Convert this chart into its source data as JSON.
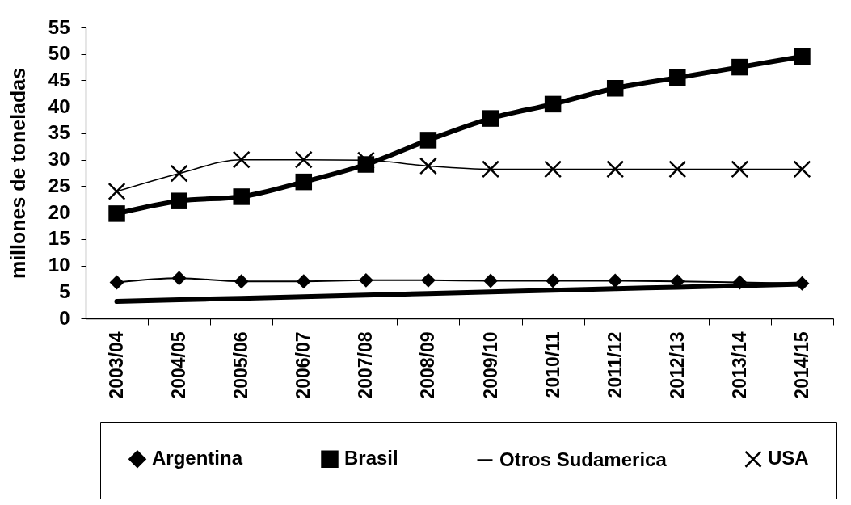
{
  "chart_data": {
    "type": "line",
    "ylabel": "millones de toneladas",
    "categories": [
      "2003/04",
      "2004/05",
      "2005/06",
      "2006/07",
      "2007/08",
      "2008/09",
      "2009/10",
      "2010/11",
      "2011/12",
      "2012/13",
      "2013/14",
      "2014/15"
    ],
    "ylim": [
      0,
      55
    ],
    "yticks": [
      0,
      5,
      10,
      15,
      20,
      25,
      30,
      35,
      40,
      45,
      50,
      55
    ],
    "legend": "bottom",
    "series": [
      {
        "name": "Argentina",
        "color": "#000000",
        "marker": "diamond",
        "values": [
          6.8,
          7.6,
          7.0,
          7.0,
          7.2,
          7.2,
          7.1,
          7.1,
          7.1,
          7.0,
          6.8,
          6.6
        ]
      },
      {
        "name": "Brasil",
        "color": "#000000",
        "marker": "square",
        "values": [
          19.8,
          22.2,
          23.0,
          25.8,
          29.1,
          33.7,
          37.8,
          40.5,
          43.5,
          45.5,
          47.5,
          49.5
        ]
      },
      {
        "name": "Otros Sudamerica",
        "color": "#000000",
        "marker": "none",
        "values": [
          3.2,
          3.5,
          3.8,
          4.1,
          4.4,
          4.7,
          5.0,
          5.3,
          5.6,
          5.9,
          6.2,
          6.5
        ]
      },
      {
        "name": "USA",
        "color": "#000000",
        "marker": "cross",
        "values": [
          24.0,
          27.4,
          30.0,
          30.0,
          29.9,
          28.8,
          28.2,
          28.2,
          28.2,
          28.2,
          28.2,
          28.2
        ]
      }
    ]
  }
}
